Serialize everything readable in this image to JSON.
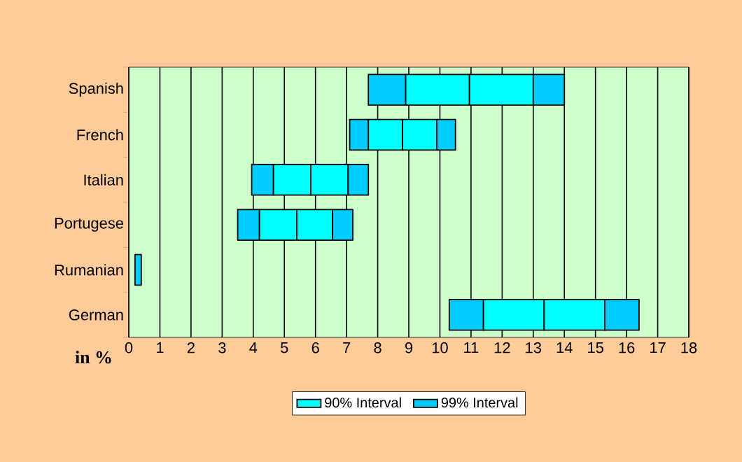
{
  "chart_data": {
    "type": "bar",
    "orientation": "horizontal",
    "categories": [
      "Spanish",
      "French",
      "Italian",
      "Portugese",
      "Rumanian",
      "German"
    ],
    "series": [
      {
        "name": "99% Interval",
        "color": "#00ccff",
        "base": [
          7.7,
          7.1,
          3.95,
          3.5,
          0.2,
          10.3
        ],
        "values": [
          1.2,
          0.6,
          0.7,
          0.7,
          0.2,
          1.1
        ]
      },
      {
        "name": "90% Interval",
        "color": "#00ffff",
        "base": [
          8.9,
          7.7,
          4.65,
          4.2,
          null,
          11.4
        ],
        "values": [
          2.05,
          1.1,
          1.2,
          1.2,
          null,
          1.95
        ]
      },
      {
        "color": "#00ffff",
        "base": [
          10.95,
          8.8,
          5.85,
          5.4,
          null,
          13.35
        ],
        "values": [
          2.05,
          1.1,
          1.2,
          1.15,
          null,
          1.95
        ]
      },
      {
        "color": "#00ccff",
        "base": [
          13,
          9.9,
          7.05,
          6.55,
          null,
          15.3
        ],
        "values": [
          1.0,
          0.6,
          0.65,
          0.65,
          null,
          1.1
        ]
      }
    ],
    "xlabel": "in %",
    "xlim": [
      0,
      18
    ],
    "xticks": [
      0,
      1,
      2,
      3,
      4,
      5,
      6,
      7,
      8,
      9,
      10,
      11,
      12,
      13,
      14,
      15,
      16,
      17,
      18
    ],
    "grid": "x",
    "legend": "bottom"
  }
}
